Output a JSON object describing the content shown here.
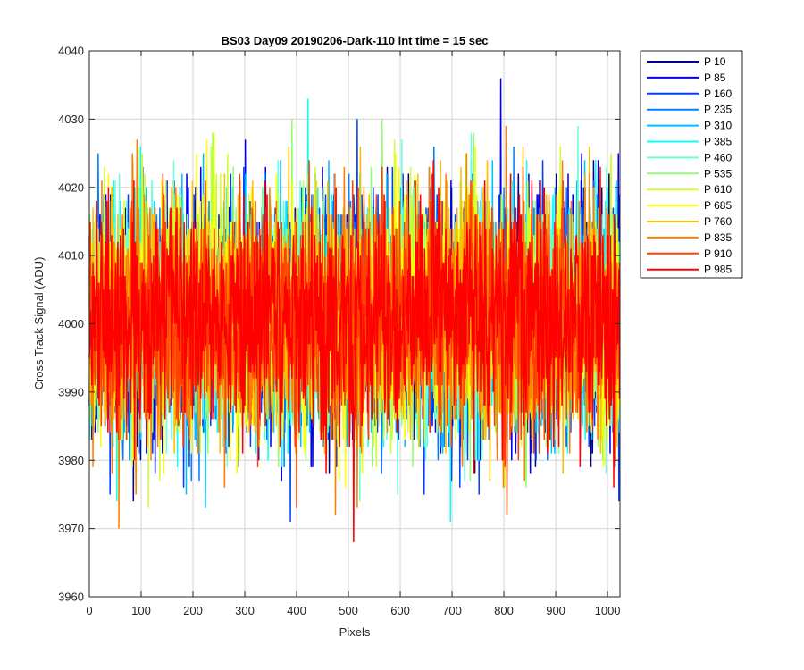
{
  "chart_data": {
    "type": "line",
    "title": "BS03 Day09 20190206-Dark-110 int time = 15 sec",
    "xlabel": "Pixels",
    "ylabel": "Cross Track Signal (ADU)",
    "xlim": [
      0,
      1024
    ],
    "ylim": [
      3960,
      4040
    ],
    "xticks": [
      0,
      100,
      200,
      300,
      400,
      500,
      600,
      700,
      800,
      900,
      1000
    ],
    "yticks": [
      3960,
      3970,
      3980,
      3990,
      4000,
      4010,
      4020,
      4030,
      4040
    ],
    "grid": true,
    "legend_position": "outside-top-right",
    "noise_model": {
      "mean": 4001,
      "stdev": 8.5,
      "points_per_series": 1024
    },
    "series": [
      {
        "name": "P 10",
        "color": "#00008f"
      },
      {
        "name": "P 85",
        "color": "#0000ee"
      },
      {
        "name": "P 160",
        "color": "#0040ff"
      },
      {
        "name": "P 235",
        "color": "#0080ff"
      },
      {
        "name": "P 310",
        "color": "#00bfff"
      },
      {
        "name": "P 385",
        "color": "#10ffef"
      },
      {
        "name": "P 460",
        "color": "#6bffdf"
      },
      {
        "name": "P 535",
        "color": "#8fff70"
      },
      {
        "name": "P 610",
        "color": "#cfff30"
      },
      {
        "name": "P 685",
        "color": "#ffff00"
      },
      {
        "name": "P 760",
        "color": "#ffbf00"
      },
      {
        "name": "P 835",
        "color": "#ff8000"
      },
      {
        "name": "P 910",
        "color": "#ff4000"
      },
      {
        "name": "P 985",
        "color": "#ff0000"
      }
    ]
  }
}
